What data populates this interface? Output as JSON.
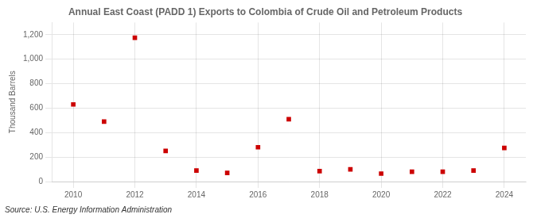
{
  "chart_data": {
    "type": "scatter",
    "title": "Annual East Coast (PADD 1) Exports to Colombia of Crude Oil and Petroleum Products",
    "ylabel": "Thousand Barrels",
    "annotation": "Source: U.S. Energy Information Administration",
    "x": [
      2010,
      2011,
      2012,
      2013,
      2014,
      2015,
      2016,
      2017,
      2018,
      2019,
      2020,
      2021,
      2022,
      2023,
      2024
    ],
    "values": [
      630,
      490,
      1175,
      250,
      90,
      70,
      280,
      510,
      85,
      100,
      65,
      80,
      80,
      90,
      275
    ],
    "color": "#cc0000",
    "marker": "square",
    "xlim": [
      2009.3,
      2024.7
    ],
    "xticks": [
      2010,
      2012,
      2014,
      2016,
      2018,
      2020,
      2022,
      2024
    ],
    "ylim": [
      0,
      1300
    ],
    "yticks": [
      0,
      200,
      400,
      600,
      800,
      {
        "value": 1000,
        "label": "1,000"
      },
      {
        "value": 1200,
        "label": "1,200"
      }
    ],
    "grid": true
  }
}
